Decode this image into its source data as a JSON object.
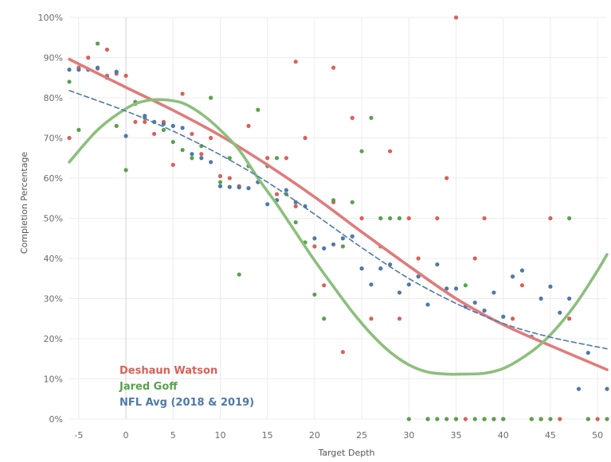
{
  "chart_data": {
    "type": "scatter",
    "title": "",
    "xlabel": "Target Depth",
    "ylabel": "Completion Percentage",
    "xlim": [
      -6,
      51
    ],
    "ylim": [
      0,
      1.0
    ],
    "x_ticks": [
      -5,
      0,
      5,
      10,
      15,
      20,
      25,
      30,
      35,
      40,
      45,
      50
    ],
    "y_ticks": [
      0,
      0.1,
      0.2,
      0.3,
      0.4,
      0.5,
      0.6,
      0.7,
      0.8,
      0.9,
      1.0
    ],
    "x_tick_labels": [
      "-5",
      "0",
      "5",
      "10",
      "15",
      "20",
      "25",
      "30",
      "35",
      "40",
      "45",
      "50"
    ],
    "y_tick_labels": [
      "0%",
      "10%",
      "20%",
      "30%",
      "40%",
      "50%",
      "60%",
      "70%",
      "80%",
      "90%",
      "100%"
    ],
    "grid": true,
    "zero_line": true,
    "legend_position": "bottom-left",
    "series": [
      {
        "name": "Deshaun Watson",
        "color": "#d9605a",
        "trend_color": "#e07b7b",
        "trend": "polynomial",
        "trend_points": [
          [
            -6,
            0.896
          ],
          [
            0,
            0.826
          ],
          [
            5,
            0.769
          ],
          [
            10,
            0.706
          ],
          [
            15,
            0.633
          ],
          [
            20,
            0.553
          ],
          [
            25,
            0.466
          ],
          [
            30,
            0.381
          ],
          [
            35,
            0.3
          ],
          [
            40,
            0.235
          ],
          [
            45,
            0.183
          ],
          [
            51,
            0.123
          ]
        ],
        "points": [
          [
            -6,
            0.7
          ],
          [
            -5,
            0.875
          ],
          [
            -4,
            0.9
          ],
          [
            -3,
            0.873
          ],
          [
            -2,
            0.92
          ],
          [
            -2,
            0.855
          ],
          [
            -1,
            0.86
          ],
          [
            0,
            0.855
          ],
          [
            1,
            0.74
          ],
          [
            2,
            0.74
          ],
          [
            3,
            0.71
          ],
          [
            4,
            0.74
          ],
          [
            5,
            0.633
          ],
          [
            6,
            0.81
          ],
          [
            7,
            0.71
          ],
          [
            8,
            0.66
          ],
          [
            9,
            0.7
          ],
          [
            10,
            0.605
          ],
          [
            11,
            0.6
          ],
          [
            12,
            0.58
          ],
          [
            13,
            0.73
          ],
          [
            14,
            0.59
          ],
          [
            15,
            0.65
          ],
          [
            16,
            0.56
          ],
          [
            17,
            0.65
          ],
          [
            18,
            0.89
          ],
          [
            18,
            0.53
          ],
          [
            19,
            0.7
          ],
          [
            20,
            0.43
          ],
          [
            21,
            0.333
          ],
          [
            22,
            0.875
          ],
          [
            22,
            0.54
          ],
          [
            23,
            0.167
          ],
          [
            24,
            0.75
          ],
          [
            25,
            0.5
          ],
          [
            26,
            0.25
          ],
          [
            27,
            0.43
          ],
          [
            28,
            0.667
          ],
          [
            29,
            0.25
          ],
          [
            30,
            0.5
          ],
          [
            31,
            0.4
          ],
          [
            32,
            0.0
          ],
          [
            33,
            0.5
          ],
          [
            34,
            0.6
          ],
          [
            35,
            1.0
          ],
          [
            35,
            0.0
          ],
          [
            36,
            0.0
          ],
          [
            37,
            0.4
          ],
          [
            38,
            0.5
          ],
          [
            38,
            0.0
          ],
          [
            39,
            0.0
          ],
          [
            40,
            0.0
          ],
          [
            41,
            0.25
          ],
          [
            42,
            0.333
          ],
          [
            43,
            0.0
          ],
          [
            44,
            0.0
          ],
          [
            45,
            0.5
          ],
          [
            46,
            0.0
          ],
          [
            47,
            0.25
          ],
          [
            49,
            0.0
          ],
          [
            50,
            0.0
          ]
        ]
      },
      {
        "name": "Jared Goff",
        "color": "#59a14f",
        "trend_color": "#8cbf7d",
        "trend": "polynomial",
        "trend_points": [
          [
            -6,
            0.64
          ],
          [
            -3,
            0.72
          ],
          [
            0,
            0.773
          ],
          [
            2,
            0.792
          ],
          [
            4,
            0.795
          ],
          [
            6,
            0.787
          ],
          [
            8,
            0.76
          ],
          [
            10,
            0.72
          ],
          [
            12,
            0.67
          ],
          [
            14,
            0.6
          ],
          [
            16,
            0.535
          ],
          [
            18,
            0.465
          ],
          [
            20,
            0.395
          ],
          [
            22,
            0.33
          ],
          [
            24,
            0.267
          ],
          [
            26,
            0.212
          ],
          [
            28,
            0.167
          ],
          [
            30,
            0.135
          ],
          [
            32,
            0.117
          ],
          [
            34,
            0.112
          ],
          [
            36,
            0.112
          ],
          [
            38,
            0.114
          ],
          [
            40,
            0.126
          ],
          [
            42,
            0.152
          ],
          [
            44,
            0.187
          ],
          [
            46,
            0.236
          ],
          [
            48,
            0.297
          ],
          [
            50,
            0.37
          ],
          [
            51,
            0.41
          ]
        ],
        "points": [
          [
            -6,
            0.84
          ],
          [
            -5,
            0.72
          ],
          [
            -3,
            0.935
          ],
          [
            -2,
            0.85
          ],
          [
            -1,
            0.73
          ],
          [
            0,
            0.62
          ],
          [
            1,
            0.79
          ],
          [
            2,
            0.75
          ],
          [
            3,
            0.74
          ],
          [
            4,
            0.72
          ],
          [
            5,
            0.69
          ],
          [
            6,
            0.67
          ],
          [
            7,
            0.65
          ],
          [
            8,
            0.68
          ],
          [
            9,
            0.8
          ],
          [
            10,
            0.59
          ],
          [
            11,
            0.65
          ],
          [
            12,
            0.36
          ],
          [
            13,
            0.63
          ],
          [
            14,
            0.77
          ],
          [
            15,
            0.63
          ],
          [
            16,
            0.65
          ],
          [
            17,
            0.56
          ],
          [
            18,
            0.49
          ],
          [
            19,
            0.44
          ],
          [
            20,
            0.31
          ],
          [
            21,
            0.25
          ],
          [
            22,
            0.545
          ],
          [
            23,
            0.43
          ],
          [
            24,
            0.54
          ],
          [
            25,
            0.667
          ],
          [
            26,
            0.75
          ],
          [
            27,
            0.5
          ],
          [
            28,
            0.5
          ],
          [
            29,
            0.5
          ],
          [
            30,
            0.0
          ],
          [
            32,
            0.0
          ],
          [
            33,
            0.0
          ],
          [
            34,
            0.0
          ],
          [
            35,
            0.0
          ],
          [
            36,
            0.333
          ],
          [
            37,
            0.0
          ],
          [
            38,
            0.0
          ],
          [
            39,
            0.0
          ],
          [
            40,
            0.0
          ],
          [
            43,
            0.0
          ],
          [
            44,
            0.0
          ],
          [
            45,
            0.0
          ],
          [
            47,
            0.5
          ],
          [
            49,
            0.0
          ],
          [
            51,
            0.0
          ]
        ]
      },
      {
        "name": "NFL Avg (2018 & 2019)",
        "color": "#4e79a7",
        "trend_color": "#4e79a7",
        "trend": "polynomial",
        "trend_dashed": true,
        "trend_points": [
          [
            -6,
            0.818
          ],
          [
            0,
            0.767
          ],
          [
            5,
            0.717
          ],
          [
            10,
            0.658
          ],
          [
            15,
            0.59
          ],
          [
            20,
            0.51
          ],
          [
            25,
            0.427
          ],
          [
            30,
            0.35
          ],
          [
            35,
            0.288
          ],
          [
            40,
            0.238
          ],
          [
            45,
            0.204
          ],
          [
            51,
            0.175
          ]
        ],
        "points": [
          [
            -6,
            0.87
          ],
          [
            -5,
            0.87
          ],
          [
            -4,
            0.87
          ],
          [
            -3,
            0.875
          ],
          [
            -2,
            0.85
          ],
          [
            -1,
            0.865
          ],
          [
            0,
            0.705
          ],
          [
            1,
            0.785
          ],
          [
            2,
            0.755
          ],
          [
            3,
            0.74
          ],
          [
            4,
            0.735
          ],
          [
            5,
            0.73
          ],
          [
            6,
            0.725
          ],
          [
            7,
            0.66
          ],
          [
            8,
            0.65
          ],
          [
            9,
            0.64
          ],
          [
            10,
            0.58
          ],
          [
            11,
            0.578
          ],
          [
            12,
            0.577
          ],
          [
            13,
            0.575
          ],
          [
            14,
            0.59
          ],
          [
            15,
            0.535
          ],
          [
            16,
            0.545
          ],
          [
            17,
            0.57
          ],
          [
            18,
            0.54
          ],
          [
            19,
            0.53
          ],
          [
            20,
            0.45
          ],
          [
            21,
            0.425
          ],
          [
            22,
            0.435
          ],
          [
            23,
            0.45
          ],
          [
            24,
            0.455
          ],
          [
            25,
            0.375
          ],
          [
            26,
            0.335
          ],
          [
            27,
            0.375
          ],
          [
            28,
            0.385
          ],
          [
            29,
            0.315
          ],
          [
            30,
            0.335
          ],
          [
            31,
            0.355
          ],
          [
            32,
            0.285
          ],
          [
            33,
            0.385
          ],
          [
            34,
            0.325
          ],
          [
            35,
            0.325
          ],
          [
            36,
            0.28
          ],
          [
            37,
            0.29
          ],
          [
            38,
            0.27
          ],
          [
            39,
            0.315
          ],
          [
            40,
            0.255
          ],
          [
            41,
            0.355
          ],
          [
            42,
            0.37
          ],
          [
            43,
            0.205
          ],
          [
            44,
            0.3
          ],
          [
            45,
            0.33
          ],
          [
            46,
            0.265
          ],
          [
            47,
            0.3
          ],
          [
            48,
            0.075
          ],
          [
            49,
            0.165
          ],
          [
            51,
            0.075
          ]
        ]
      }
    ]
  }
}
